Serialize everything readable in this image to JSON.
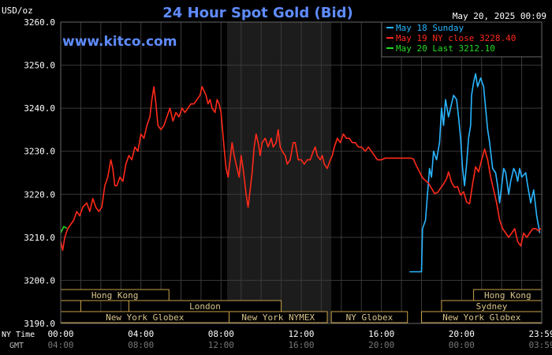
{
  "chart_data": {
    "type": "line",
    "title": "24 Hour Spot Gold (Bid)",
    "unit_label": "USD/oz",
    "brand": "www.kitco.com",
    "datetime": "May 20, 2025 00:09",
    "ylim": [
      3190,
      3260
    ],
    "y_ticks": [
      "3260.0",
      "3250.0",
      "3240.0",
      "3230.0",
      "3220.0",
      "3210.0",
      "3200.0",
      "3190.0"
    ],
    "x_hours_range": [
      0,
      24
    ],
    "x_ticks": [
      {
        "hour": 0,
        "ny": "00:00",
        "gmt": "04:00"
      },
      {
        "hour": 4,
        "ny": "04:00",
        "gmt": "08:00"
      },
      {
        "hour": 8,
        "ny": "08:00",
        "gmt": "12:00"
      },
      {
        "hour": 12,
        "ny": "12:00",
        "gmt": "16:00"
      },
      {
        "hour": 16,
        "ny": "16:00",
        "gmt": "20:00"
      },
      {
        "hour": 20,
        "ny": "20:00",
        "gmt": "00:00"
      },
      {
        "hour": 24,
        "ny": "23:59",
        "gmt": "03:59"
      }
    ],
    "row_labels": {
      "ny": "NY Time",
      "gmt": "GMT"
    },
    "shaded_range_hours": [
      8.3,
      13.5
    ],
    "legend": [
      {
        "label": "May 18 Sunday",
        "color": "#29b6ff"
      },
      {
        "label": "May 19 NY close 3228.40",
        "color": "#ff2a1a"
      },
      {
        "label": "May 20 Last 3212.10",
        "color": "#22dd22"
      }
    ],
    "sessions": [
      {
        "label": "Hong Kong",
        "start": 0,
        "end": 5.4,
        "row": 0
      },
      {
        "label": "Hong Kong",
        "start": 20.6,
        "end": 24,
        "row": 0
      },
      {
        "label": "",
        "start": 0,
        "end": 1.0,
        "row": 1
      },
      {
        "label": "London",
        "start": 3.4,
        "end": 11.0,
        "row": 1
      },
      {
        "label": "Sydney",
        "start": 19.0,
        "end": 24,
        "row": 1
      },
      {
        "label": "New York Globex",
        "start": 0,
        "end": 8.4,
        "row": 2
      },
      {
        "label": "New York NYMEX",
        "start": 8.4,
        "end": 13.3,
        "row": 2
      },
      {
        "label": "NY Globex",
        "start": 13.5,
        "end": 17.3,
        "row": 2
      },
      {
        "label": "New York Globex",
        "start": 18.0,
        "end": 24,
        "row": 2
      }
    ],
    "series": [
      {
        "name": "May 18 Sunday",
        "color": "#29b6ff",
        "points": [
          [
            17.4,
            3202.0
          ],
          [
            18.0,
            3202.0
          ],
          [
            18.05,
            3212
          ],
          [
            18.2,
            3214
          ],
          [
            18.3,
            3220
          ],
          [
            18.4,
            3226
          ],
          [
            18.5,
            3224
          ],
          [
            18.6,
            3230
          ],
          [
            18.75,
            3228
          ],
          [
            18.9,
            3232
          ],
          [
            19.0,
            3240
          ],
          [
            19.1,
            3236
          ],
          [
            19.2,
            3242
          ],
          [
            19.35,
            3238
          ],
          [
            19.5,
            3241
          ],
          [
            19.6,
            3243
          ],
          [
            19.75,
            3242
          ],
          [
            19.85,
            3238
          ],
          [
            19.95,
            3233
          ],
          [
            20.05,
            3226
          ],
          [
            20.15,
            3222
          ],
          [
            20.25,
            3227
          ],
          [
            20.35,
            3233
          ],
          [
            20.45,
            3236
          ],
          [
            20.5,
            3243
          ],
          [
            20.6,
            3246
          ],
          [
            20.7,
            3248
          ],
          [
            20.8,
            3245
          ],
          [
            20.95,
            3247
          ],
          [
            21.1,
            3245
          ],
          [
            21.2,
            3240
          ],
          [
            21.3,
            3235
          ],
          [
            21.4,
            3232
          ],
          [
            21.55,
            3226
          ],
          [
            21.7,
            3225
          ],
          [
            21.8,
            3222
          ],
          [
            21.9,
            3218
          ],
          [
            22.0,
            3222
          ],
          [
            22.1,
            3226
          ],
          [
            22.2,
            3225
          ],
          [
            22.35,
            3220
          ],
          [
            22.45,
            3223
          ],
          [
            22.6,
            3226
          ],
          [
            22.7,
            3225
          ],
          [
            22.8,
            3223
          ],
          [
            22.9,
            3226
          ],
          [
            23.0,
            3224
          ],
          [
            23.2,
            3225
          ],
          [
            23.3,
            3222
          ],
          [
            23.45,
            3218
          ],
          [
            23.6,
            3221
          ],
          [
            23.75,
            3215
          ],
          [
            23.9,
            3211.0
          ]
        ]
      },
      {
        "name": "May 19 NY close 3228.40",
        "color": "#ff2a1a",
        "points": [
          [
            0.0,
            3209
          ],
          [
            0.1,
            3207
          ],
          [
            0.2,
            3210
          ],
          [
            0.35,
            3212
          ],
          [
            0.5,
            3213
          ],
          [
            0.65,
            3214
          ],
          [
            0.8,
            3216
          ],
          [
            0.95,
            3215
          ],
          [
            1.1,
            3217
          ],
          [
            1.3,
            3218
          ],
          [
            1.45,
            3216
          ],
          [
            1.6,
            3219
          ],
          [
            1.75,
            3217
          ],
          [
            1.9,
            3216
          ],
          [
            2.05,
            3217
          ],
          [
            2.2,
            3222
          ],
          [
            2.35,
            3224
          ],
          [
            2.5,
            3228
          ],
          [
            2.6,
            3226
          ],
          [
            2.7,
            3222
          ],
          [
            2.8,
            3222
          ],
          [
            2.95,
            3224
          ],
          [
            3.1,
            3223
          ],
          [
            3.25,
            3227
          ],
          [
            3.4,
            3229
          ],
          [
            3.55,
            3228
          ],
          [
            3.7,
            3231
          ],
          [
            3.85,
            3230
          ],
          [
            4.0,
            3234
          ],
          [
            4.15,
            3233
          ],
          [
            4.3,
            3236
          ],
          [
            4.45,
            3238
          ],
          [
            4.55,
            3242
          ],
          [
            4.65,
            3245
          ],
          [
            4.75,
            3241
          ],
          [
            4.85,
            3236
          ],
          [
            5.0,
            3235
          ],
          [
            5.15,
            3236
          ],
          [
            5.3,
            3238
          ],
          [
            5.45,
            3240
          ],
          [
            5.6,
            3237
          ],
          [
            5.75,
            3239
          ],
          [
            5.9,
            3238
          ],
          [
            6.05,
            3240
          ],
          [
            6.2,
            3239
          ],
          [
            6.35,
            3240
          ],
          [
            6.5,
            3241
          ],
          [
            6.65,
            3241
          ],
          [
            6.8,
            3242
          ],
          [
            6.95,
            3243
          ],
          [
            7.05,
            3245
          ],
          [
            7.15,
            3244
          ],
          [
            7.25,
            3243
          ],
          [
            7.35,
            3241
          ],
          [
            7.45,
            3242
          ],
          [
            7.55,
            3240
          ],
          [
            7.7,
            3239
          ],
          [
            7.8,
            3242
          ],
          [
            7.9,
            3241
          ],
          [
            8.0,
            3239
          ],
          [
            8.15,
            3231
          ],
          [
            8.25,
            3226
          ],
          [
            8.35,
            3224
          ],
          [
            8.45,
            3228
          ],
          [
            8.55,
            3232
          ],
          [
            8.65,
            3229
          ],
          [
            8.75,
            3227
          ],
          [
            8.9,
            3224
          ],
          [
            9.0,
            3229
          ],
          [
            9.1,
            3226
          ],
          [
            9.25,
            3220
          ],
          [
            9.35,
            3217
          ],
          [
            9.45,
            3221
          ],
          [
            9.55,
            3225
          ],
          [
            9.65,
            3231
          ],
          [
            9.75,
            3234
          ],
          [
            9.85,
            3232
          ],
          [
            9.95,
            3229
          ],
          [
            10.05,
            3232
          ],
          [
            10.2,
            3233
          ],
          [
            10.35,
            3231
          ],
          [
            10.5,
            3233
          ],
          [
            10.6,
            3231
          ],
          [
            10.75,
            3232
          ],
          [
            10.85,
            3235
          ],
          [
            10.95,
            3231
          ],
          [
            11.05,
            3230
          ],
          [
            11.2,
            3229
          ],
          [
            11.3,
            3227
          ],
          [
            11.45,
            3228
          ],
          [
            11.6,
            3232
          ],
          [
            11.7,
            3232
          ],
          [
            11.85,
            3228
          ],
          [
            12.0,
            3228
          ],
          [
            12.15,
            3227
          ],
          [
            12.3,
            3228
          ],
          [
            12.45,
            3228
          ],
          [
            12.6,
            3230
          ],
          [
            12.7,
            3231
          ],
          [
            12.8,
            3229
          ],
          [
            12.95,
            3228
          ],
          [
            13.05,
            3229
          ],
          [
            13.15,
            3227
          ],
          [
            13.3,
            3226
          ],
          [
            13.45,
            3228
          ],
          [
            13.55,
            3229
          ],
          [
            13.65,
            3231
          ],
          [
            13.8,
            3233
          ],
          [
            13.95,
            3232
          ],
          [
            14.1,
            3234
          ],
          [
            14.25,
            3233
          ],
          [
            14.4,
            3233
          ],
          [
            14.55,
            3232
          ],
          [
            14.7,
            3232
          ],
          [
            14.85,
            3231
          ],
          [
            15.0,
            3231
          ],
          [
            15.2,
            3230
          ],
          [
            15.35,
            3231
          ],
          [
            15.5,
            3230
          ],
          [
            15.65,
            3229
          ],
          [
            15.8,
            3228
          ],
          [
            16.0,
            3228
          ],
          [
            16.2,
            3228.4
          ],
          [
            17.3,
            3228.4
          ],
          [
            17.45,
            3228.4
          ],
          [
            17.6,
            3228.2
          ],
          [
            17.75,
            3226.6
          ],
          [
            17.9,
            3225.2
          ],
          [
            18.05,
            3223.8
          ],
          [
            18.2,
            3223.2
          ],
          [
            18.35,
            3222.6
          ],
          [
            18.5,
            3221.4
          ],
          [
            18.65,
            3220.2
          ],
          [
            18.8,
            3220.4
          ],
          [
            18.95,
            3221.4
          ],
          [
            19.1,
            3222.4
          ],
          [
            19.25,
            3223.6
          ],
          [
            19.35,
            3225.2
          ],
          [
            19.5,
            3222.8
          ],
          [
            19.65,
            3221.6
          ],
          [
            19.8,
            3221.8
          ],
          [
            19.95,
            3219.8
          ],
          [
            20.1,
            3220.6
          ],
          [
            20.25,
            3218.2
          ],
          [
            20.4,
            3217.8
          ],
          [
            20.55,
            3222.4
          ],
          [
            20.7,
            3226.4
          ],
          [
            20.85,
            3225.2
          ],
          [
            21.0,
            3228
          ],
          [
            21.15,
            3230.5
          ],
          [
            21.3,
            3228
          ],
          [
            21.45,
            3224
          ],
          [
            21.6,
            3221
          ],
          [
            21.75,
            3218
          ],
          [
            21.9,
            3214
          ],
          [
            22.05,
            3212
          ],
          [
            22.2,
            3211
          ],
          [
            22.35,
            3210
          ],
          [
            22.5,
            3211
          ],
          [
            22.65,
            3212
          ],
          [
            22.8,
            3209
          ],
          [
            22.95,
            3208
          ],
          [
            23.1,
            3211
          ],
          [
            23.25,
            3210
          ],
          [
            23.4,
            3211
          ],
          [
            23.55,
            3212
          ],
          [
            23.7,
            3212
          ],
          [
            23.85,
            3211.5
          ],
          [
            23.95,
            3212.1
          ]
        ]
      },
      {
        "name": "May 20 Last 3212.10",
        "color": "#22dd22",
        "points": [
          [
            0.0,
            3211.0
          ],
          [
            0.15,
            3212.5
          ],
          [
            0.3,
            3212.1
          ]
        ]
      }
    ]
  }
}
